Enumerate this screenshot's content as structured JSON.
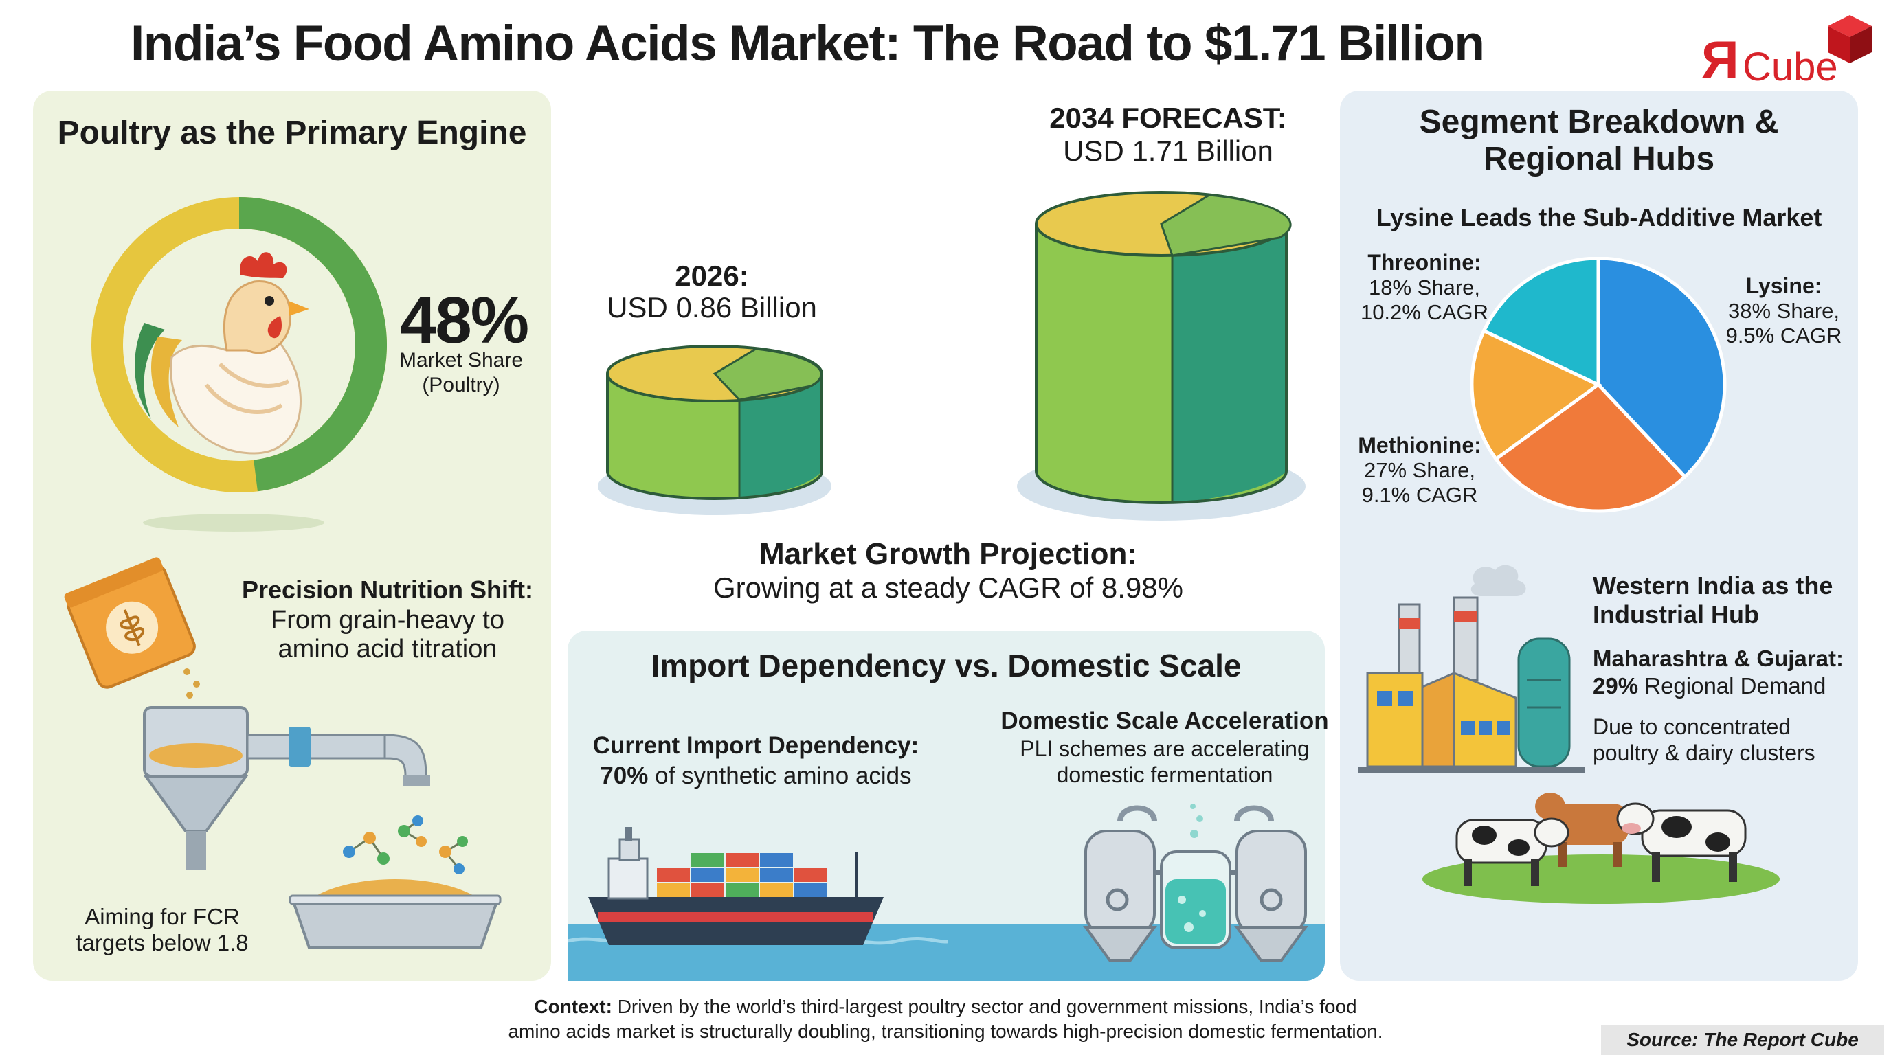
{
  "title": "India’s Food Amino Acids Market: The Road to $1.71 Billion",
  "logo": {
    "mark": "Я",
    "text": "Cube"
  },
  "poultry": {
    "heading": "Poultry as the Primary Engine",
    "share_value": "48%",
    "share_label_1": "Market Share",
    "share_label_2": "(Poultry)",
    "share_fraction": 0.48
  },
  "precision": {
    "heading": "Precision Nutrition Shift:",
    "line1": "From grain-heavy to",
    "line2": "amino acid titration",
    "fcr_line1": "Aiming for FCR",
    "fcr_line2": "targets below 1.8"
  },
  "growth": {
    "y2026_label": "2026:",
    "y2026_value": "USD 0.86 Billion",
    "y2034_label": "2034 FORECAST:",
    "y2034_value": "USD 1.71 Billion",
    "projection_heading": "Market Growth Projection:",
    "projection_text": "Growing at a steady CAGR of 8.98%"
  },
  "import": {
    "heading": "Import Dependency vs. Domestic Scale",
    "current_heading": "Current Import Dependency:",
    "current_value": "70%",
    "current_text": " of synthetic amino acids",
    "domestic_heading": "Domestic Scale Acceleration",
    "domestic_line1": "PLI schemes are accelerating",
    "domestic_line2": "domestic fermentation"
  },
  "segments": {
    "heading_1": "Segment Breakdown &",
    "heading_2": "Regional Hubs",
    "sub_heading": "Lysine Leads the Sub-Additive Market",
    "items": [
      {
        "name": "Lysine:",
        "share": "38% Share,",
        "cagr": "9.5% CAGR",
        "color": "#2a8fe0"
      },
      {
        "name": "Methionine:",
        "share": "27% Share,",
        "cagr": "9.1% CAGR",
        "color": "#f07a3a"
      },
      {
        "name": "Threonine:",
        "share": "18% Share,",
        "cagr": "10.2% CAGR",
        "color": "#1fb8cc"
      }
    ],
    "other_color": "#f5a93a"
  },
  "western": {
    "heading_1": "Western India as the",
    "heading_2": "Industrial Hub",
    "states": "Maharashtra & Gujarat:",
    "demand_value": "29%",
    "demand_text": " Regional Demand",
    "reason_1": "Due to concentrated",
    "reason_2": "poultry & dairy clusters"
  },
  "footer": {
    "context_label": "Context:",
    "context_text_1": " Driven by the world’s third-largest poultry sector and government missions, India’s food",
    "context_text_2": "amino acids market is structurally doubling, transitioning towards high-precision domestic fermentation.",
    "source": "Source: The Report Cube"
  },
  "icons": [
    "rooster-icon",
    "feed-bag-icon",
    "hopper-pipe-icon",
    "molecule-icon",
    "feed-tray-icon",
    "cargo-ship-icon",
    "fermentation-tanks-icon",
    "factory-icon",
    "cows-icon",
    "cube-logo-icon"
  ]
}
